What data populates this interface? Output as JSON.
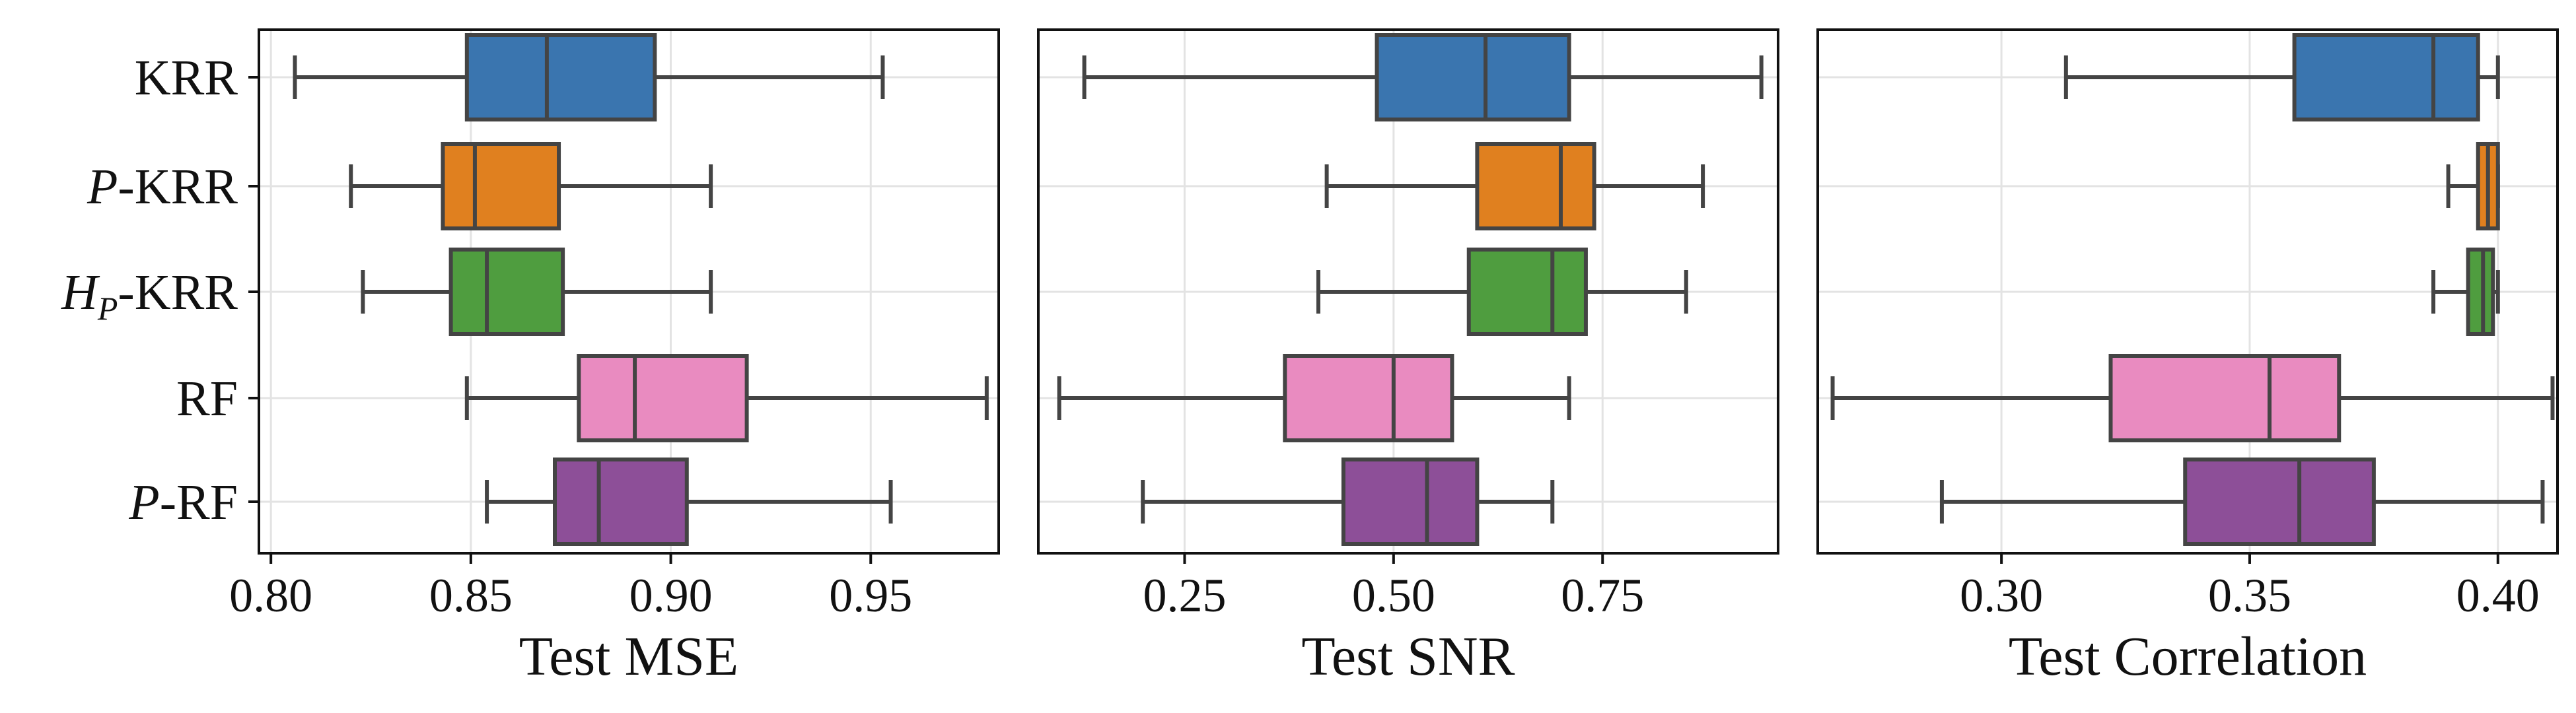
{
  "chart_data": {
    "type": "boxplot",
    "orientation": "horizontal",
    "categories": [
      {
        "key": "krr",
        "label": "KRR",
        "color": "#3a75af"
      },
      {
        "key": "p-krr",
        "label": "P-KRR",
        "math_prefix": "P",
        "suffix": "-KRR",
        "color": "#e0801f"
      },
      {
        "key": "hp-krr",
        "label": "HP-KRR",
        "math_prefix": "H",
        "math_sub": "P",
        "suffix": "-KRR",
        "color": "#4f9d3f"
      },
      {
        "key": "rf",
        "label": "RF",
        "color": "#e98bc0"
      },
      {
        "key": "p-rf",
        "label": "P-RF",
        "math_prefix": "P",
        "suffix": "-RF",
        "color": "#8d4f98"
      }
    ],
    "grid": true,
    "panels": [
      {
        "key": "mse",
        "xlabel": "Test MSE",
        "xlim": [
          0.797,
          0.982
        ],
        "xticks": [
          "0.80",
          "0.85",
          "0.90",
          "0.95"
        ],
        "boxes": [
          {
            "whisker_low": 0.806,
            "q1": 0.849,
            "median": 0.869,
            "q3": 0.896,
            "whisker_high": 0.953
          },
          {
            "whisker_low": 0.82,
            "q1": 0.843,
            "median": 0.851,
            "q3": 0.872,
            "whisker_high": 0.91
          },
          {
            "whisker_low": 0.823,
            "q1": 0.845,
            "median": 0.854,
            "q3": 0.873,
            "whisker_high": 0.91
          },
          {
            "whisker_low": 0.849,
            "q1": 0.877,
            "median": 0.891,
            "q3": 0.919,
            "whisker_high": 0.979
          },
          {
            "whisker_low": 0.854,
            "q1": 0.871,
            "median": 0.882,
            "q3": 0.904,
            "whisker_high": 0.955
          }
        ]
      },
      {
        "key": "snr",
        "xlabel": "Test SNR",
        "xlim": [
          0.075,
          0.96
        ],
        "xticks": [
          "0.25",
          "0.50",
          "0.75"
        ],
        "boxes": [
          {
            "whisker_low": 0.13,
            "q1": 0.48,
            "median": 0.61,
            "q3": 0.71,
            "whisker_high": 0.94
          },
          {
            "whisker_low": 0.42,
            "q1": 0.6,
            "median": 0.7,
            "q3": 0.74,
            "whisker_high": 0.87
          },
          {
            "whisker_low": 0.41,
            "q1": 0.59,
            "median": 0.69,
            "q3": 0.73,
            "whisker_high": 0.85
          },
          {
            "whisker_low": 0.1,
            "q1": 0.37,
            "median": 0.5,
            "q3": 0.57,
            "whisker_high": 0.71
          },
          {
            "whisker_low": 0.2,
            "q1": 0.44,
            "median": 0.54,
            "q3": 0.6,
            "whisker_high": 0.69
          }
        ]
      },
      {
        "key": "corr",
        "xlabel": "Test Correlation",
        "xlim": [
          0.263,
          0.412
        ],
        "xticks": [
          "0.30",
          "0.35",
          "0.40"
        ],
        "boxes": [
          {
            "whisker_low": 0.313,
            "q1": 0.359,
            "median": 0.387,
            "q3": 0.396,
            "whisker_high": 0.4
          },
          {
            "whisker_low": 0.39,
            "q1": 0.396,
            "median": 0.398,
            "q3": 0.4,
            "whisker_high": 0.4
          },
          {
            "whisker_low": 0.387,
            "q1": 0.394,
            "median": 0.397,
            "q3": 0.399,
            "whisker_high": 0.4
          },
          {
            "whisker_low": 0.266,
            "q1": 0.322,
            "median": 0.354,
            "q3": 0.368,
            "whisker_high": 0.411
          },
          {
            "whisker_low": 0.288,
            "q1": 0.337,
            "median": 0.36,
            "q3": 0.375,
            "whisker_high": 0.409
          }
        ]
      }
    ]
  }
}
